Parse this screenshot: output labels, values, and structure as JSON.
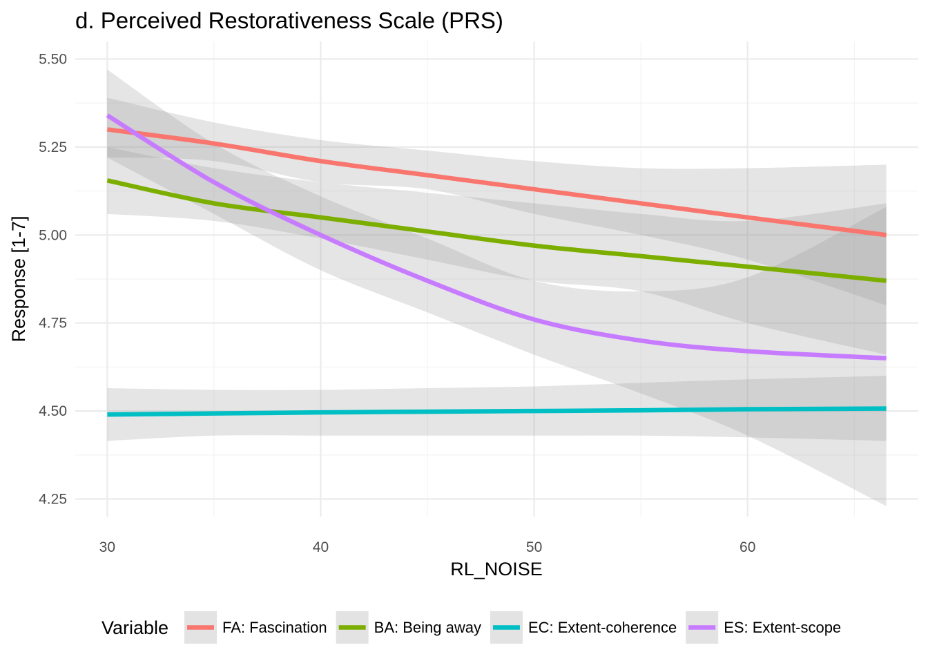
{
  "chart_data": {
    "type": "line",
    "title": "d. Perceived Restorativeness Scale (PRS)",
    "xlabel": "RL_NOISE",
    "ylabel": "Response [1-7]",
    "xlim": [
      28.5,
      68
    ],
    "ylim": [
      4.2,
      5.55
    ],
    "x_ticks": [
      30,
      40,
      50,
      60
    ],
    "y_ticks": [
      4.25,
      4.5,
      4.75,
      5.0,
      5.25,
      5.5
    ],
    "x_tick_labels": [
      "30",
      "40",
      "50",
      "60"
    ],
    "y_tick_labels": [
      "4.25",
      "4.50",
      "4.75",
      "5.00",
      "5.25",
      "5.50"
    ],
    "grid": true,
    "legend": {
      "title": "Variable",
      "position": "bottom"
    },
    "x": [
      30,
      35,
      40,
      45,
      50,
      55,
      60,
      66.5
    ],
    "series": [
      {
        "name": "FA: Fascination",
        "color": "#F8766D",
        "values": [
          5.3,
          5.26,
          5.21,
          5.17,
          5.13,
          5.09,
          5.05,
          5.0
        ],
        "lower": [
          5.22,
          5.21,
          5.15,
          5.13,
          5.06,
          5.0,
          4.93,
          4.8
        ],
        "upper": [
          5.39,
          5.32,
          5.27,
          5.24,
          5.21,
          5.19,
          5.19,
          5.2
        ]
      },
      {
        "name": "BA: Being away",
        "color": "#7CAE00",
        "values": [
          5.155,
          5.09,
          5.05,
          5.01,
          4.97,
          4.94,
          4.91,
          4.87
        ],
        "lower": [
          5.06,
          5.04,
          4.99,
          4.93,
          4.87,
          4.84,
          4.75,
          4.66
        ],
        "upper": [
          5.25,
          5.19,
          5.15,
          5.12,
          5.09,
          5.06,
          5.04,
          5.09
        ]
      },
      {
        "name": "EC: Extent-coherence",
        "color": "#00BFC4",
        "values": [
          4.49,
          4.493,
          4.496,
          4.498,
          4.5,
          4.502,
          4.505,
          4.507
        ],
        "lower": [
          4.415,
          4.43,
          4.43,
          4.43,
          4.43,
          4.43,
          4.425,
          4.415
        ],
        "upper": [
          4.565,
          4.56,
          4.56,
          4.565,
          4.57,
          4.58,
          4.59,
          4.6
        ]
      },
      {
        "name": "ES: Extent-scope",
        "color": "#C77CFF",
        "values": [
          5.34,
          5.15,
          5.0,
          4.87,
          4.76,
          4.7,
          4.67,
          4.65
        ],
        "lower": [
          5.22,
          5.06,
          4.9,
          4.78,
          4.66,
          4.55,
          4.43,
          4.23
        ],
        "upper": [
          5.47,
          5.26,
          5.11,
          4.99,
          4.87,
          4.84,
          4.88,
          5.08
        ]
      }
    ]
  }
}
